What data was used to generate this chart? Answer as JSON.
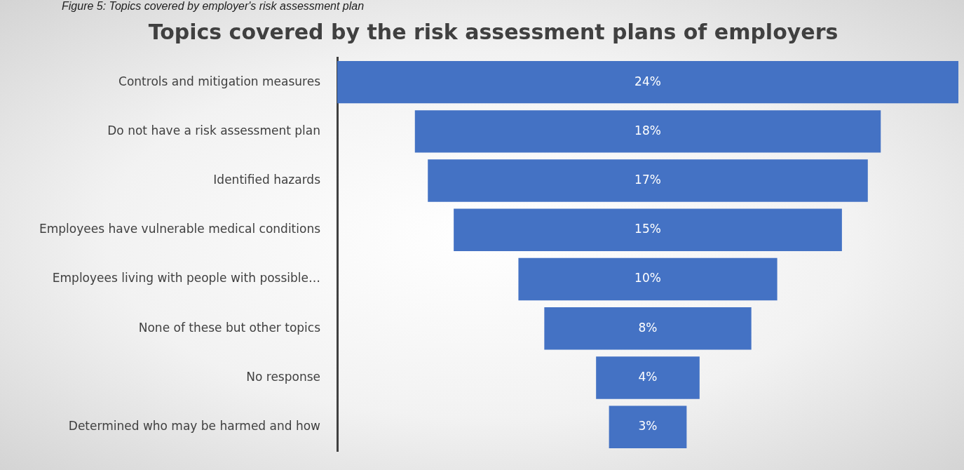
{
  "chart_data": {
    "type": "other",
    "title": "Topics covered by the risk assessment plans of employers",
    "annotations": [
      "Figure 5: Topics covered by employer's risk assessment plan"
    ],
    "categories": [
      "Controls and mitigation measures",
      "Do not have a risk assessment plan",
      "Identified hazards",
      "Employees have vulnerable medical conditions",
      "Employees living with people with possible…",
      "None of these but other topics",
      "No response",
      "Determined who may be harmed and how"
    ],
    "values": [
      24,
      18,
      17,
      15,
      10,
      8,
      4,
      3
    ],
    "color": "#4472c4",
    "value_labels": [
      "24%",
      "18%",
      "17%",
      "15%",
      "10%",
      "8%",
      "4%",
      "3%"
    ]
  }
}
